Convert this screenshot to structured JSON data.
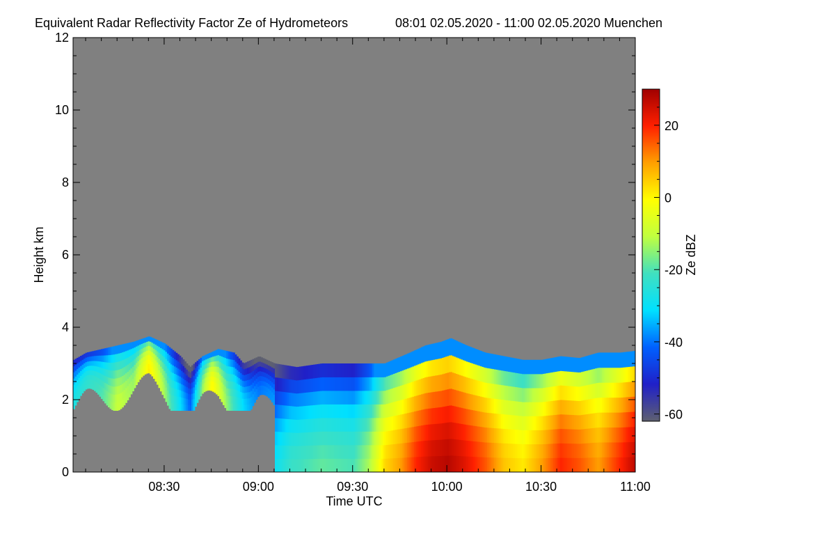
{
  "chart_data": {
    "type": "heatmap",
    "title": "Equivalent Radar Reflectivity Factor Ze of Hydrometeors",
    "subtitle": "08:01 02.05.2020 - 11:00 02.05.2020 Muenchen",
    "xlabel": "Time UTC",
    "ylabel": "Height km",
    "colorbar_label": "Ze dBZ",
    "x_range_minutes": [
      481,
      660
    ],
    "y_range_km": [
      0,
      12
    ],
    "x_ticks": [
      {
        "minute": 510,
        "label": "08:30"
      },
      {
        "minute": 540,
        "label": "09:00"
      },
      {
        "minute": 570,
        "label": "09:30"
      },
      {
        "minute": 600,
        "label": "10:00"
      },
      {
        "minute": 630,
        "label": "10:30"
      },
      {
        "minute": 660,
        "label": "11:00"
      }
    ],
    "y_ticks": [
      {
        "value": 0,
        "label": "0"
      },
      {
        "value": 2,
        "label": "2"
      },
      {
        "value": 4,
        "label": "4"
      },
      {
        "value": 6,
        "label": "6"
      },
      {
        "value": 8,
        "label": "8"
      },
      {
        "value": 10,
        "label": "10"
      },
      {
        "value": 12,
        "label": "12"
      }
    ],
    "colorbar_range_dbz": [
      -62,
      30
    ],
    "colorbar_ticks": [
      {
        "value": 20,
        "label": "20"
      },
      {
        "value": 0,
        "label": "0"
      },
      {
        "value": -20,
        "label": "-20"
      },
      {
        "value": -40,
        "label": "-40"
      },
      {
        "value": -60,
        "label": "-60"
      }
    ],
    "background_color": "#808080",
    "colormap": [
      "#5e6070",
      "#2020c8",
      "#0060ff",
      "#00e0ff",
      "#40e0c0",
      "#c0ff40",
      "#ffff00",
      "#ffa000",
      "#ff2000",
      "#a00000"
    ],
    "cloud_layer": {
      "top_height_km": [
        [
          481,
          3.1
        ],
        [
          485,
          3.3
        ],
        [
          490,
          3.4
        ],
        [
          495,
          3.5
        ],
        [
          500,
          3.6
        ],
        [
          505,
          3.75
        ],
        [
          510,
          3.55
        ],
        [
          515,
          3.2
        ],
        [
          518,
          2.9
        ],
        [
          522,
          3.2
        ],
        [
          527,
          3.4
        ],
        [
          532,
          3.3
        ],
        [
          535,
          3.0
        ],
        [
          540,
          3.2
        ],
        [
          545,
          3.0
        ],
        [
          552,
          2.9
        ],
        [
          560,
          3.0
        ],
        [
          570,
          3.0
        ],
        [
          580,
          3.0
        ],
        [
          588,
          3.3
        ],
        [
          593,
          3.5
        ],
        [
          598,
          3.6
        ],
        [
          601,
          3.7
        ],
        [
          606,
          3.5
        ],
        [
          612,
          3.3
        ],
        [
          618,
          3.2
        ],
        [
          624,
          3.1
        ],
        [
          630,
          3.1
        ],
        [
          636,
          3.2
        ],
        [
          642,
          3.15
        ],
        [
          648,
          3.3
        ],
        [
          655,
          3.3
        ],
        [
          660,
          3.35
        ]
      ],
      "reflectivity_profile_dbz": [
        [
          481,
          -25
        ],
        [
          490,
          -18
        ],
        [
          495,
          -8
        ],
        [
          500,
          -12
        ],
        [
          505,
          3
        ],
        [
          510,
          -12
        ],
        [
          518,
          -40
        ],
        [
          522,
          -12
        ],
        [
          525,
          2
        ],
        [
          530,
          -14
        ],
        [
          535,
          -30
        ],
        [
          540,
          -38
        ],
        [
          545,
          -35
        ],
        [
          550,
          -28
        ],
        [
          560,
          -24
        ],
        [
          570,
          -26
        ],
        [
          575,
          -18
        ],
        [
          580,
          -2
        ],
        [
          585,
          4
        ],
        [
          590,
          14
        ],
        [
          595,
          20
        ],
        [
          600,
          22
        ],
        [
          605,
          18
        ],
        [
          612,
          10
        ],
        [
          618,
          0
        ],
        [
          624,
          -4
        ],
        [
          630,
          4
        ],
        [
          636,
          14
        ],
        [
          642,
          10
        ],
        [
          648,
          4
        ],
        [
          655,
          14
        ],
        [
          660,
          22
        ]
      ]
    }
  }
}
